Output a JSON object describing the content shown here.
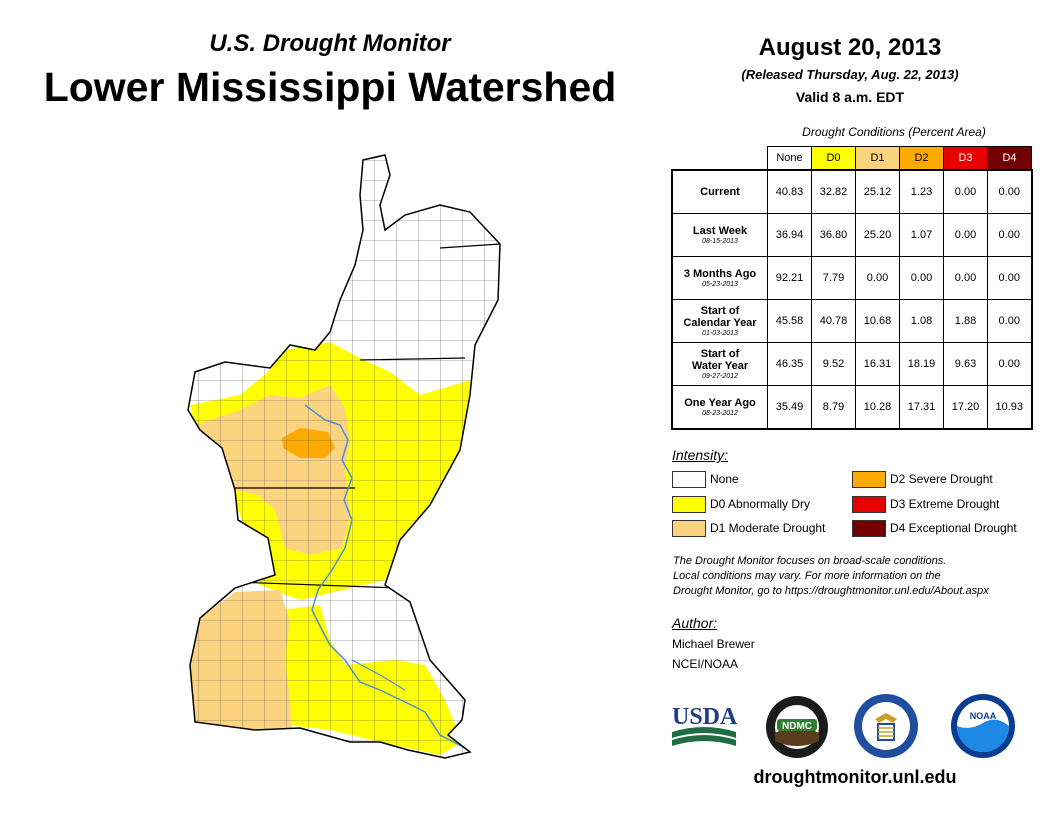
{
  "header": {
    "subtitle": "U.S. Drought Monitor",
    "title": "Lower Mississippi Watershed",
    "date": "August 20, 2013",
    "released": "(Released Thursday, Aug. 22, 2013)",
    "valid": "Valid 8 a.m. EDT"
  },
  "conditions": {
    "caption": "Drought Conditions (Percent Area)",
    "columns": [
      "None",
      "D0",
      "D1",
      "D2",
      "D3",
      "D4"
    ],
    "rows": [
      {
        "label": "Current",
        "label2": "",
        "date": "",
        "values": [
          "40.83",
          "32.82",
          "25.12",
          "1.23",
          "0.00",
          "0.00"
        ]
      },
      {
        "label": "Last Week",
        "label2": "",
        "date": "08-15-2013",
        "values": [
          "36.94",
          "36.80",
          "25.20",
          "1.07",
          "0.00",
          "0.00"
        ]
      },
      {
        "label": "3 Months Ago",
        "label2": "",
        "date": "05-23-2013",
        "values": [
          "92.21",
          "7.79",
          "0.00",
          "0.00",
          "0.00",
          "0.00"
        ]
      },
      {
        "label": "Start of",
        "label2": "Calendar Year",
        "date": "01-03-2013",
        "values": [
          "45.58",
          "40.78",
          "10.68",
          "1.08",
          "1.88",
          "0.00"
        ]
      },
      {
        "label": "Start of",
        "label2": "Water Year",
        "date": "09-27-2012",
        "values": [
          "46.35",
          "9.52",
          "16.31",
          "18.19",
          "9.63",
          "0.00"
        ]
      },
      {
        "label": "One Year Ago",
        "label2": "",
        "date": "08-23-2012",
        "values": [
          "35.49",
          "8.79",
          "10.28",
          "17.31",
          "17.20",
          "10.93"
        ]
      }
    ]
  },
  "colors": {
    "none": "#ffffff",
    "d0": "#ffff00",
    "d1": "#fcd37f",
    "d2": "#ffaa00",
    "d3": "#e60000",
    "d4": "#730000",
    "river": "#4a90d9"
  },
  "legend": {
    "heading": "Intensity:",
    "items": [
      {
        "label": "None",
        "color": "#ffffff"
      },
      {
        "label": "D0 Abnormally Dry",
        "color": "#ffff00"
      },
      {
        "label": "D1 Moderate Drought",
        "color": "#fcd37f"
      },
      {
        "label": "D2 Severe Drought",
        "color": "#ffaa00"
      },
      {
        "label": "D3 Extreme Drought",
        "color": "#e60000"
      },
      {
        "label": "D4 Exceptional Drought",
        "color": "#730000"
      }
    ]
  },
  "note": {
    "line1": "The Drought Monitor focuses on broad-scale conditions.",
    "line2": "Local conditions may vary. For more information on the",
    "line3": "Drought Monitor, go to https://droughtmonitor.unl.edu/About.aspx"
  },
  "author": {
    "heading": "Author:",
    "name": "Michael Brewer",
    "org": "NCEI/NOAA"
  },
  "logos": {
    "usda": "USDA",
    "ndmc": "NDMC",
    "noaa": "NOAA"
  },
  "website": "droughtmonitor.unl.edu"
}
